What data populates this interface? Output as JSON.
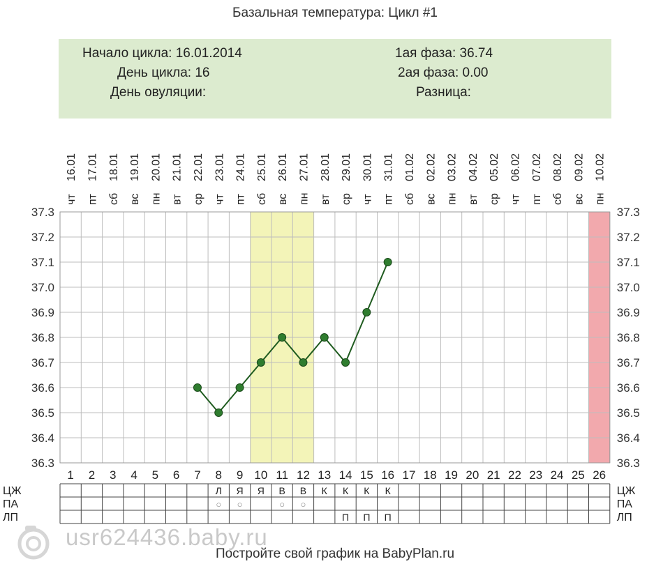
{
  "title": "Базальная температура: Цикл #1",
  "info": {
    "cycle_start": "Начало цикла: 16.01.2014",
    "cycle_day": "День цикла: 16",
    "ovulation_day": "День овуляции:",
    "phase1": "1ая фаза: 36.74",
    "phase2": "2ая фаза: 0.00",
    "difference": "Разница:"
  },
  "chart_data": {
    "type": "line",
    "ylim": [
      36.3,
      37.3
    ],
    "y_ticks": [
      "37.3",
      "37.2",
      "37.1",
      "37.0",
      "36.9",
      "36.8",
      "36.7",
      "36.6",
      "36.5",
      "36.4",
      "36.3"
    ],
    "dates": [
      "16.01",
      "17.01",
      "18.01",
      "19.01",
      "20.01",
      "21.01",
      "22.01",
      "23.01",
      "24.01",
      "25.01",
      "26.01",
      "27.01",
      "28.01",
      "29.01",
      "30.01",
      "31.01",
      "01.02",
      "02.02",
      "03.02",
      "04.02",
      "05.02",
      "06.02",
      "07.02",
      "08.02",
      "09.02",
      "10.02"
    ],
    "weekdays": [
      "чт",
      "пт",
      "сб",
      "вс",
      "пн",
      "вт",
      "ср",
      "чт",
      "пт",
      "сб",
      "вс",
      "пн",
      "вт",
      "ср",
      "чт",
      "пт",
      "сб",
      "вс",
      "пн",
      "вт",
      "ср",
      "чт",
      "пт",
      "сб",
      "вс",
      "пн"
    ],
    "days": [
      "1",
      "2",
      "3",
      "4",
      "5",
      "6",
      "7",
      "8",
      "9",
      "10",
      "11",
      "12",
      "13",
      "14",
      "15",
      "16",
      "17",
      "18",
      "19",
      "20",
      "21",
      "22",
      "23",
      "24",
      "25",
      "26"
    ],
    "series": [
      {
        "x": [
          7,
          8,
          9,
          10,
          11,
          12,
          13,
          14,
          15,
          16
        ],
        "y": [
          36.6,
          36.5,
          36.6,
          36.7,
          36.8,
          36.7,
          36.8,
          36.7,
          36.9,
          37.1
        ]
      }
    ],
    "highlight_days": [
      10,
      11,
      12
    ],
    "highlight_color": "#f3f4b8",
    "marker_days": [
      26
    ],
    "marker_color": "#f2a9ad",
    "line_color": "#1f5b1f",
    "marker_fill": "#2f7d2f",
    "grid": true,
    "row_labels": [
      "ЦЖ",
      "ПА",
      "ЛП"
    ],
    "rows": {
      "ЦЖ": {
        "8": "Л",
        "9": "Я",
        "10": "Я",
        "11": "В",
        "12": "В",
        "13": "К",
        "14": "К",
        "15": "К",
        "16": "К"
      },
      "ПА": {
        "8": "○",
        "9": "○",
        "11": "○",
        "12": "○"
      },
      "ЛП": {
        "14": "П",
        "15": "П",
        "16": "П"
      }
    }
  },
  "watermark": "usr624436.baby.ru",
  "footer": "Постройте свой график на BabyPlan.ru"
}
